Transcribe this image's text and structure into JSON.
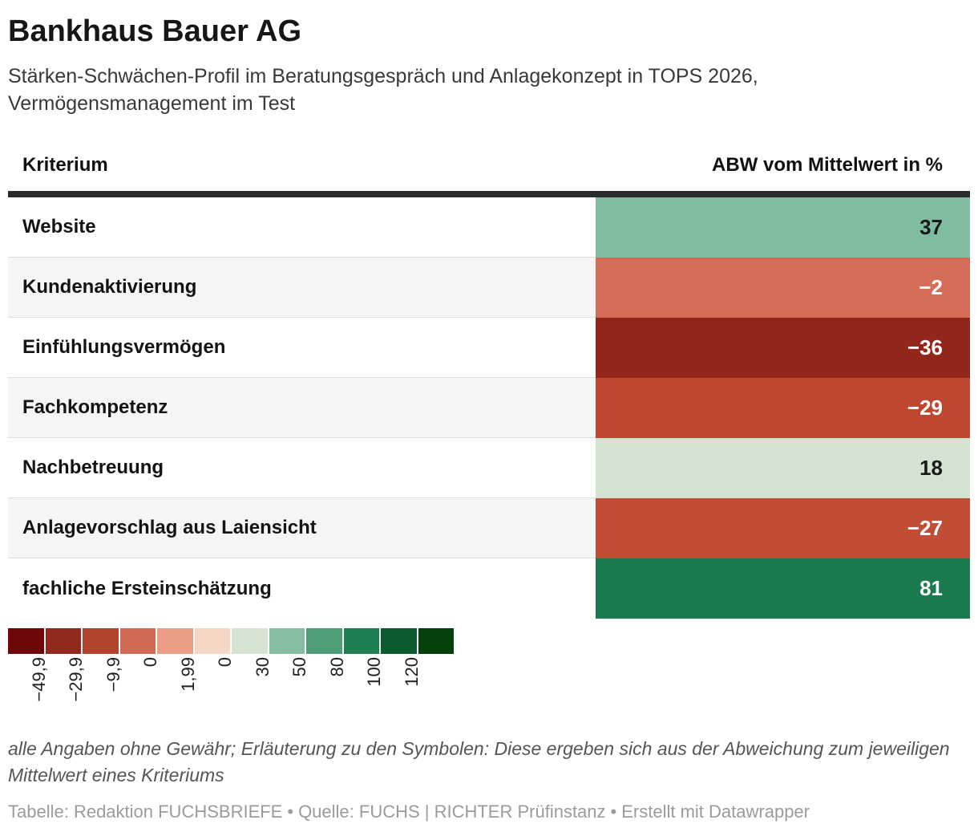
{
  "header": {
    "title": "Bankhaus Bauer AG",
    "subtitle_line1": "Stärken-Schwächen-Profil im Beratungsgespräch und Anlagekonzept in TOPS 2026,",
    "subtitle_line2": "Vermögensmanagement im Test"
  },
  "table": {
    "col_left_header": "Kriterium",
    "col_right_header": "ABW vom Mittelwert in %",
    "rows": [
      {
        "label": "Website",
        "value": "37",
        "color": "#7fbca0",
        "text_color": "#1a1a1a"
      },
      {
        "label": "Kundenaktivierung",
        "value": "−2",
        "color": "#d56c58",
        "text_color": "#ffffff"
      },
      {
        "label": "Einfühlungsvermögen",
        "value": "−36",
        "color": "#92261b",
        "text_color": "#ffffff"
      },
      {
        "label": "Fachkompetenz",
        "value": "−29",
        "color": "#bd4731",
        "text_color": "#ffffff"
      },
      {
        "label": "Nachbetreuung",
        "value": "18",
        "color": "#d2e4d1",
        "text_color": "#1a1a1a"
      },
      {
        "label": "Anlagevorschlag aus Laiensicht",
        "value": "−27",
        "value_note": "",
        "color": "#c14d36",
        "text_color": "#ffffff"
      },
      {
        "label": "fachliche Ersteinschätzung",
        "value": "81",
        "color": "#1b7a4e",
        "text_color": "#ffffff"
      }
    ]
  },
  "legend": {
    "colors": [
      "#700707",
      "#92281c",
      "#b4432d",
      "#d06a54",
      "#ec9d85",
      "#f8d6c5",
      "#d4e4d1",
      "#85bda0",
      "#4f9d77",
      "#1f7f50",
      "#0c5c30",
      "#04400a"
    ],
    "labels": [
      "−49,9",
      "−29,9",
      "−9,9",
      "0",
      "1,99",
      "0",
      "30",
      "50",
      "80",
      "100",
      "120"
    ]
  },
  "note": {
    "line1": "alle Angaben ohne Gewähr; Erläuterung zu den Symbolen: Diese ergeben sich aus der Abweichung zum jeweiligen",
    "line2": "Mittelwert eines Kriteriums"
  },
  "footer": {
    "credit1": "Tabelle: Redaktion FUCHSBRIEFE",
    "separator": "•",
    "credit2": "Quelle: FUCHS | RICHTER Prüfinstanz",
    "credit3": "Erstellt mit Datawrapper"
  },
  "chart_data": {
    "type": "heatmap",
    "title": "Bankhaus Bauer AG",
    "subtitle": "Stärken-Schwächen-Profil im Beratungsgespräch und Anlagekonzept in TOPS 2026, Vermögensmanagement im Test",
    "categories": [
      "Website",
      "Kundenaktivierung",
      "Einfühlungsvermögen",
      "Fachkompetenz",
      "Nachbetreuung",
      "Anlagevorschlag aus Laiensicht",
      "fachliche Ersteinschätzung"
    ],
    "values": [
      37,
      -2,
      -36,
      -29,
      18,
      -27,
      81
    ],
    "value_label": "ABW vom Mittelwert in %",
    "category_label": "Kriterium",
    "legend_boundaries": [
      -49.9,
      -29.9,
      -9.9,
      0,
      1.99,
      0,
      30,
      50,
      80,
      100,
      120
    ],
    "legend_position": "bottom-left"
  }
}
